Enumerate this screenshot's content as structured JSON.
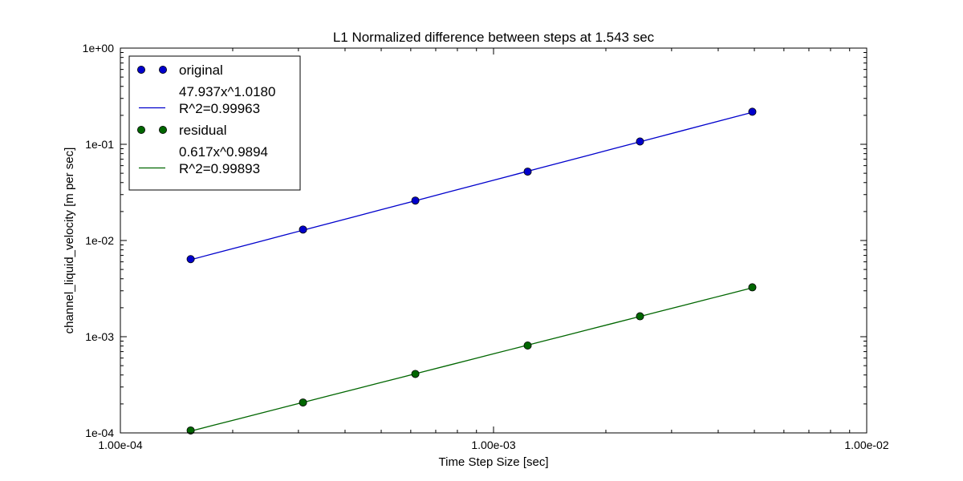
{
  "chart_data": {
    "type": "scatter",
    "title": "L1 Normalized difference between steps at 1.543 sec",
    "xlabel": "Time Step Size [sec]",
    "ylabel": "channel_liquid_velocity [m per sec]",
    "xscale": "log",
    "yscale": "log",
    "xlim": [
      0.0001,
      0.01
    ],
    "ylim": [
      0.0001,
      1
    ],
    "xticks": [
      {
        "value": 0.0001,
        "label": "1.00e-04"
      },
      {
        "value": 0.001,
        "label": "1.00e-03"
      },
      {
        "value": 0.01,
        "label": "1.00e-02"
      }
    ],
    "yticks": [
      {
        "value": 1,
        "label": "1e+00"
      },
      {
        "value": 0.1,
        "label": "1e-01"
      },
      {
        "value": 0.01,
        "label": "1e-02"
      },
      {
        "value": 0.001,
        "label": "1e-03"
      },
      {
        "value": 0.0001,
        "label": "1e-04"
      }
    ],
    "grid": false,
    "legend_position": "top-left",
    "series": [
      {
        "name": "original",
        "kind": "markers",
        "color": "#0000cc",
        "x": [
          0.0001543,
          0.0003086,
          0.0006172,
          0.0012344,
          0.0024688,
          0.0049375
        ],
        "y": [
          0.0064,
          0.013,
          0.026,
          0.052,
          0.107,
          0.218
        ]
      },
      {
        "name": "47.937x^1.0180\nR^2=0.99963",
        "kind": "line",
        "color": "#0000cc",
        "fit": {
          "coefficient": 47.937,
          "exponent": 1.018
        },
        "x": [
          0.0001543,
          0.0049375
        ]
      },
      {
        "name": "residual",
        "kind": "markers",
        "color": "#006600",
        "x": [
          0.0001543,
          0.0003086,
          0.0006172,
          0.0012344,
          0.0024688,
          0.0049375
        ],
        "y": [
          0.000106,
          0.000207,
          0.00041,
          0.00081,
          0.00163,
          0.00326
        ]
      },
      {
        "name": "0.617x^0.9894\nR^2=0.99893",
        "kind": "line",
        "color": "#006600",
        "fit": {
          "coefficient": 0.617,
          "exponent": 0.9894
        },
        "x": [
          0.0001543,
          0.0049375
        ]
      }
    ]
  }
}
